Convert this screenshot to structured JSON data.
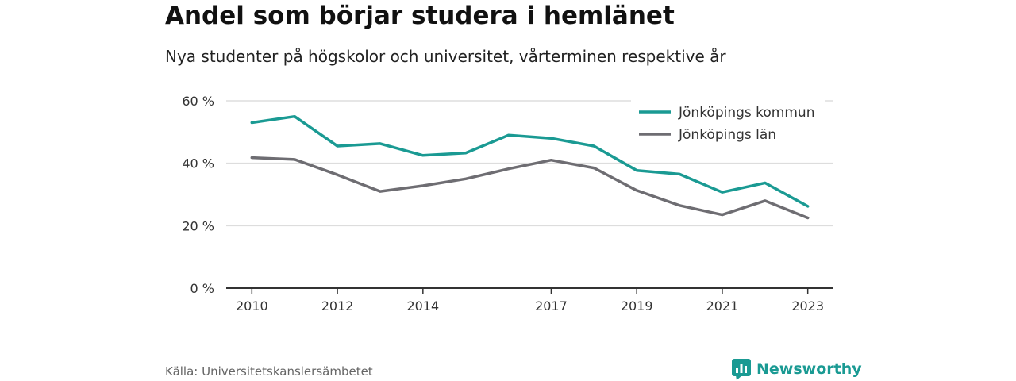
{
  "title": "Andel som börjar studera i hemlänet",
  "subtitle": "Nya studenter på högskolor och universitet, vårterminen respektive år",
  "source": "Källa: Universitetskanslersämbetet",
  "brand": {
    "name": "Newsworthy",
    "icon": "newsworthy-logo-icon",
    "color": "#1a9a93"
  },
  "chart_data": {
    "type": "line",
    "x": [
      2010,
      2011,
      2012,
      2013,
      2014,
      2015,
      2016,
      2017,
      2018,
      2019,
      2020,
      2021,
      2022,
      2023
    ],
    "x_tick_labels": [
      "2010",
      "2012",
      "2014",
      "2017",
      "2019",
      "2021",
      "2023"
    ],
    "x_ticks": [
      2010,
      2012,
      2014,
      2017,
      2019,
      2021,
      2023
    ],
    "y_ticks": [
      0,
      20,
      40,
      60
    ],
    "y_tick_labels": [
      "0 %",
      "20 %",
      "40 %",
      "60 %"
    ],
    "ylim": [
      0,
      60
    ],
    "grid": true,
    "legend_position": "top-right",
    "series": [
      {
        "name": "Jönköpings kommun",
        "color": "#1a9a93",
        "values": [
          53,
          55,
          45.5,
          46.3,
          42.5,
          43.3,
          49,
          48,
          45.5,
          37.7,
          36.5,
          30.7,
          33.7,
          26.2
        ]
      },
      {
        "name": "Jönköpings län",
        "color": "#6e6d72",
        "values": [
          41.8,
          41.2,
          36.3,
          31,
          32.8,
          35,
          38.2,
          41,
          38.5,
          31.3,
          26.5,
          23.5,
          28,
          22.5
        ]
      }
    ]
  }
}
